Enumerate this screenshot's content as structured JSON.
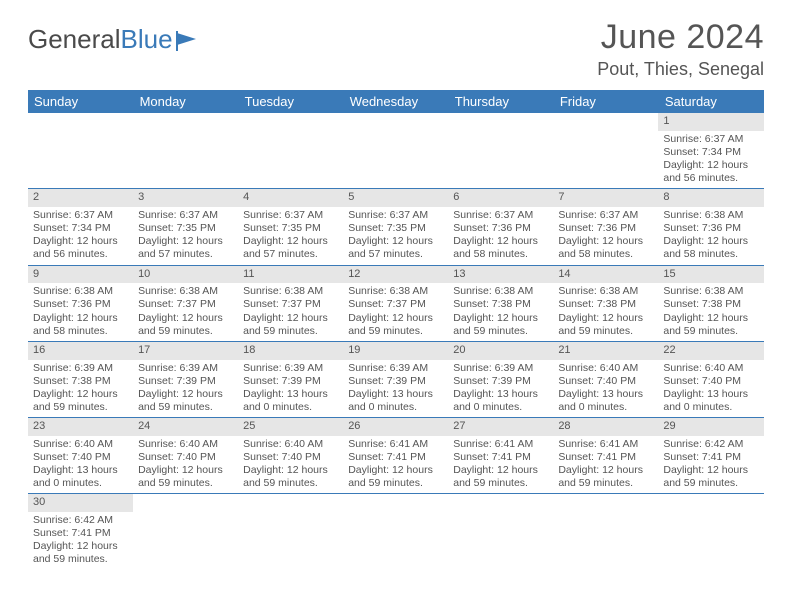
{
  "brand": {
    "word1": "General",
    "word2": "Blue"
  },
  "title": "June 2024",
  "location": "Pout, Thies, Senegal",
  "colors": {
    "header_bg": "#3a7ab8",
    "header_fg": "#ffffff",
    "daynum_bg": "#e6e6e6",
    "rule": "#3a7ab8",
    "text": "#555555",
    "page_bg": "#ffffff"
  },
  "fonts": {
    "body_family": "Arial",
    "title_size_pt": 26,
    "location_size_pt": 14,
    "header_size_pt": 10,
    "cell_size_pt": 8
  },
  "day_headers": [
    "Sunday",
    "Monday",
    "Tuesday",
    "Wednesday",
    "Thursday",
    "Friday",
    "Saturday"
  ],
  "weeks": [
    [
      null,
      null,
      null,
      null,
      null,
      null,
      {
        "n": "1",
        "sr": "Sunrise: 6:37 AM",
        "ss": "Sunset: 7:34 PM",
        "d1": "Daylight: 12 hours",
        "d2": "and 56 minutes."
      }
    ],
    [
      {
        "n": "2",
        "sr": "Sunrise: 6:37 AM",
        "ss": "Sunset: 7:34 PM",
        "d1": "Daylight: 12 hours",
        "d2": "and 56 minutes."
      },
      {
        "n": "3",
        "sr": "Sunrise: 6:37 AM",
        "ss": "Sunset: 7:35 PM",
        "d1": "Daylight: 12 hours",
        "d2": "and 57 minutes."
      },
      {
        "n": "4",
        "sr": "Sunrise: 6:37 AM",
        "ss": "Sunset: 7:35 PM",
        "d1": "Daylight: 12 hours",
        "d2": "and 57 minutes."
      },
      {
        "n": "5",
        "sr": "Sunrise: 6:37 AM",
        "ss": "Sunset: 7:35 PM",
        "d1": "Daylight: 12 hours",
        "d2": "and 57 minutes."
      },
      {
        "n": "6",
        "sr": "Sunrise: 6:37 AM",
        "ss": "Sunset: 7:36 PM",
        "d1": "Daylight: 12 hours",
        "d2": "and 58 minutes."
      },
      {
        "n": "7",
        "sr": "Sunrise: 6:37 AM",
        "ss": "Sunset: 7:36 PM",
        "d1": "Daylight: 12 hours",
        "d2": "and 58 minutes."
      },
      {
        "n": "8",
        "sr": "Sunrise: 6:38 AM",
        "ss": "Sunset: 7:36 PM",
        "d1": "Daylight: 12 hours",
        "d2": "and 58 minutes."
      }
    ],
    [
      {
        "n": "9",
        "sr": "Sunrise: 6:38 AM",
        "ss": "Sunset: 7:36 PM",
        "d1": "Daylight: 12 hours",
        "d2": "and 58 minutes."
      },
      {
        "n": "10",
        "sr": "Sunrise: 6:38 AM",
        "ss": "Sunset: 7:37 PM",
        "d1": "Daylight: 12 hours",
        "d2": "and 59 minutes."
      },
      {
        "n": "11",
        "sr": "Sunrise: 6:38 AM",
        "ss": "Sunset: 7:37 PM",
        "d1": "Daylight: 12 hours",
        "d2": "and 59 minutes."
      },
      {
        "n": "12",
        "sr": "Sunrise: 6:38 AM",
        "ss": "Sunset: 7:37 PM",
        "d1": "Daylight: 12 hours",
        "d2": "and 59 minutes."
      },
      {
        "n": "13",
        "sr": "Sunrise: 6:38 AM",
        "ss": "Sunset: 7:38 PM",
        "d1": "Daylight: 12 hours",
        "d2": "and 59 minutes."
      },
      {
        "n": "14",
        "sr": "Sunrise: 6:38 AM",
        "ss": "Sunset: 7:38 PM",
        "d1": "Daylight: 12 hours",
        "d2": "and 59 minutes."
      },
      {
        "n": "15",
        "sr": "Sunrise: 6:38 AM",
        "ss": "Sunset: 7:38 PM",
        "d1": "Daylight: 12 hours",
        "d2": "and 59 minutes."
      }
    ],
    [
      {
        "n": "16",
        "sr": "Sunrise: 6:39 AM",
        "ss": "Sunset: 7:38 PM",
        "d1": "Daylight: 12 hours",
        "d2": "and 59 minutes."
      },
      {
        "n": "17",
        "sr": "Sunrise: 6:39 AM",
        "ss": "Sunset: 7:39 PM",
        "d1": "Daylight: 12 hours",
        "d2": "and 59 minutes."
      },
      {
        "n": "18",
        "sr": "Sunrise: 6:39 AM",
        "ss": "Sunset: 7:39 PM",
        "d1": "Daylight: 13 hours",
        "d2": "and 0 minutes."
      },
      {
        "n": "19",
        "sr": "Sunrise: 6:39 AM",
        "ss": "Sunset: 7:39 PM",
        "d1": "Daylight: 13 hours",
        "d2": "and 0 minutes."
      },
      {
        "n": "20",
        "sr": "Sunrise: 6:39 AM",
        "ss": "Sunset: 7:39 PM",
        "d1": "Daylight: 13 hours",
        "d2": "and 0 minutes."
      },
      {
        "n": "21",
        "sr": "Sunrise: 6:40 AM",
        "ss": "Sunset: 7:40 PM",
        "d1": "Daylight: 13 hours",
        "d2": "and 0 minutes."
      },
      {
        "n": "22",
        "sr": "Sunrise: 6:40 AM",
        "ss": "Sunset: 7:40 PM",
        "d1": "Daylight: 13 hours",
        "d2": "and 0 minutes."
      }
    ],
    [
      {
        "n": "23",
        "sr": "Sunrise: 6:40 AM",
        "ss": "Sunset: 7:40 PM",
        "d1": "Daylight: 13 hours",
        "d2": "and 0 minutes."
      },
      {
        "n": "24",
        "sr": "Sunrise: 6:40 AM",
        "ss": "Sunset: 7:40 PM",
        "d1": "Daylight: 12 hours",
        "d2": "and 59 minutes."
      },
      {
        "n": "25",
        "sr": "Sunrise: 6:40 AM",
        "ss": "Sunset: 7:40 PM",
        "d1": "Daylight: 12 hours",
        "d2": "and 59 minutes."
      },
      {
        "n": "26",
        "sr": "Sunrise: 6:41 AM",
        "ss": "Sunset: 7:41 PM",
        "d1": "Daylight: 12 hours",
        "d2": "and 59 minutes."
      },
      {
        "n": "27",
        "sr": "Sunrise: 6:41 AM",
        "ss": "Sunset: 7:41 PM",
        "d1": "Daylight: 12 hours",
        "d2": "and 59 minutes."
      },
      {
        "n": "28",
        "sr": "Sunrise: 6:41 AM",
        "ss": "Sunset: 7:41 PM",
        "d1": "Daylight: 12 hours",
        "d2": "and 59 minutes."
      },
      {
        "n": "29",
        "sr": "Sunrise: 6:42 AM",
        "ss": "Sunset: 7:41 PM",
        "d1": "Daylight: 12 hours",
        "d2": "and 59 minutes."
      }
    ],
    [
      {
        "n": "30",
        "sr": "Sunrise: 6:42 AM",
        "ss": "Sunset: 7:41 PM",
        "d1": "Daylight: 12 hours",
        "d2": "and 59 minutes."
      },
      null,
      null,
      null,
      null,
      null,
      null
    ]
  ]
}
